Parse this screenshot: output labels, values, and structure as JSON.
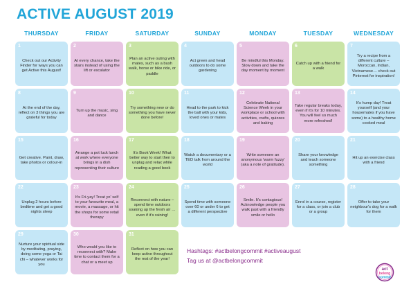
{
  "title": "ACTIVE AUGUST 2019",
  "days": [
    "THURSDAY",
    "FRIDAY",
    "SATURDAY",
    "SUNDAY",
    "MONDAY",
    "TUESDAY",
    "WEDNESDAY"
  ],
  "colors": {
    "accent": "#21a5d8",
    "purple": "#8a2e8c",
    "blue_cell": "#c5e7f7",
    "pink_cell": "#e8c4e2",
    "green_cell": "#c9e4a6"
  },
  "cells": [
    {
      "num": "1",
      "text": "Check out our Activity Finder for ways you can get Active this August!",
      "color": "blue"
    },
    {
      "num": "2",
      "text": "At every chance, take the stairs instead of using the lift or escalator",
      "color": "pink"
    },
    {
      "num": "3",
      "text": "Plan an active outing with mates, such as a bush walk, horse or bike ride, or paddle",
      "color": "green"
    },
    {
      "num": "4",
      "text": "Act green and head outdoors to do some gardening",
      "color": "blue"
    },
    {
      "num": "5",
      "text": "Be mindful this Monday. Slow down and take the day moment by moment",
      "color": "pink"
    },
    {
      "num": "6",
      "text": "Catch up with a friend for a walk",
      "color": "green"
    },
    {
      "num": "7",
      "text": "Try a recipe from a different culture – Moroccan, Indian, Vietnamese… check out Pinterest for inspiration!",
      "color": "blue"
    },
    {
      "num": "8",
      "text": "At the end of the day, reflect on 3 things you are grateful for today",
      "color": "blue"
    },
    {
      "num": "9",
      "text": "Turn up the music, sing and dance",
      "color": "pink"
    },
    {
      "num": "10",
      "text": "Try something new or do something you have never done before!",
      "color": "green"
    },
    {
      "num": "11",
      "text": "Head to the park to kick the ball with your kids, loved ones or mates",
      "color": "blue"
    },
    {
      "num": "12",
      "text": "Celebrate National Science Week in your workplace or school with activities, crafts, quizzes and baking",
      "color": "pink"
    },
    {
      "num": "13",
      "text": "Take regular breaks today, even if it's for 10 minutes. You will feel so much more refreshed!",
      "color": "pink"
    },
    {
      "num": "14",
      "text": "It's hump day! Treat yourself (and your housemates if you have some) to a healthy home cooked meal",
      "color": "blue"
    },
    {
      "num": "15",
      "text": "Get creative. Paint, draw, take photos or colour-in",
      "color": "blue"
    },
    {
      "num": "16",
      "text": "Arrange a pot luck lunch at work where everyone brings in a dish representing their culture",
      "color": "pink"
    },
    {
      "num": "17",
      "text": "It's Book Week! What better way to start then to unplug and relax while reading a good book",
      "color": "green"
    },
    {
      "num": "18",
      "text": "Watch a documentary or a TED talk from around the world",
      "color": "blue"
    },
    {
      "num": "19",
      "text": "Write someone an anonymous 'warm fuzzy' (aka a note of gratitude).",
      "color": "pink"
    },
    {
      "num": "20",
      "text": "Share your knowledge and teach someone something",
      "color": "blue"
    },
    {
      "num": "21",
      "text": "Hit up an exercise class with a friend",
      "color": "blue"
    },
    {
      "num": "22",
      "text": "Unplug 2 hours before bedtime and get a good nights sleep",
      "color": "blue"
    },
    {
      "num": "23",
      "text": "It's Fri-yay! Treat yo' self to your favourite meal, a movie, a massage, or hit the shops for some retail therapy",
      "color": "pink"
    },
    {
      "num": "24",
      "text": "Reconnect with nature – spend time outdoors soaking up the fresh air … even if it's raining!",
      "color": "green"
    },
    {
      "num": "25",
      "text": "Spend time with someone over 60 or under 6 to get a different perspective",
      "color": "blue"
    },
    {
      "num": "26",
      "text": "Smile. It's contagious! Acknowledge people you walk past with a friendly smile or hello",
      "color": "pink"
    },
    {
      "num": "27",
      "text": "Enrol in a course, register for a class, or join a club or a group",
      "color": "blue"
    },
    {
      "num": "28",
      "text": "Offer to take your neighbour's dog for a walk for them",
      "color": "blue"
    },
    {
      "num": "29",
      "text": "Nurture your spiritual side by meditating, praying, doing some yoga or Tai chi – whatever works for you",
      "color": "blue"
    },
    {
      "num": "30",
      "text": "Who would you like to reconnect with? Make time to contact them for a chat or a meet up",
      "color": "pink"
    },
    {
      "num": "31",
      "text": "Reflect on how you can keep active throughout the rest of the year!",
      "color": "green"
    }
  ],
  "footer": {
    "hashtags": "Hashtags: #actbelongcommit  #activeaugust",
    "tagline": "Tag us at @actbelongcommit"
  },
  "logo": {
    "line1": "act",
    "line2": "belong",
    "line3": "commit"
  }
}
